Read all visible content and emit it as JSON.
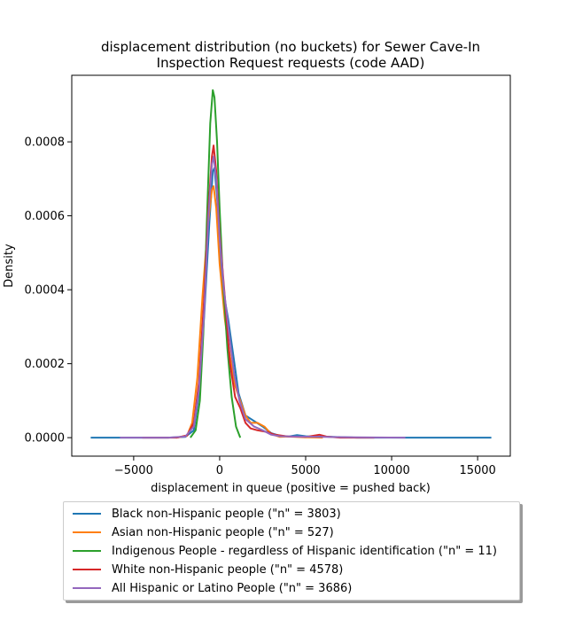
{
  "chart_data": {
    "type": "line",
    "title": [
      "displacement distribution (no buckets)  for Sewer Cave-In",
      "Inspection Request requests (code AAD)"
    ],
    "xlabel": "displacement in queue (positive = pushed back)",
    "ylabel": "Density",
    "xlim": [
      -8600,
      16900
    ],
    "ylim": [
      -5e-05,
      0.00098
    ],
    "xticks": [
      -5000,
      0,
      5000,
      10000,
      15000
    ],
    "xtick_labels": [
      "−5000",
      "0",
      "5000",
      "10000",
      "15000"
    ],
    "yticks": [
      0,
      0.0002,
      0.0004,
      0.0006,
      0.0008
    ],
    "ytick_labels": [
      "0.0000",
      "0.0002",
      "0.0004",
      "0.0006",
      "0.0008"
    ],
    "legend_placement": "below",
    "series": [
      {
        "name": "Black non-Hispanic people (\"n\" = 3803)",
        "color": "#1f77b4",
        "points": [
          [
            -7500,
            0
          ],
          [
            -3000,
            0
          ],
          [
            -2000,
            2e-06
          ],
          [
            -1500,
            2e-05
          ],
          [
            -1200,
            0.00012
          ],
          [
            -900,
            0.00033
          ],
          [
            -600,
            0.00058
          ],
          [
            -400,
            0.00072
          ],
          [
            -300,
            0.00073
          ],
          [
            -150,
            0.00065
          ],
          [
            0,
            0.00052
          ],
          [
            200,
            0.0004
          ],
          [
            500,
            0.00032
          ],
          [
            800,
            0.00022
          ],
          [
            1100,
            0.00012
          ],
          [
            1500,
            6e-05
          ],
          [
            2000,
            4.5e-05
          ],
          [
            2500,
            3e-05
          ],
          [
            3000,
            1.2e-05
          ],
          [
            3500,
            5e-06
          ],
          [
            4000,
            3e-06
          ],
          [
            4500,
            7e-06
          ],
          [
            5000,
            4e-06
          ],
          [
            5500,
            2e-06
          ],
          [
            6000,
            3e-06
          ],
          [
            8000,
            0
          ],
          [
            15800,
            0
          ]
        ]
      },
      {
        "name": "Asian non-Hispanic people (\"n\" = 527)",
        "color": "#ff7f0e",
        "points": [
          [
            -2500,
            0
          ],
          [
            -1900,
            5e-06
          ],
          [
            -1600,
            4e-05
          ],
          [
            -1300,
            0.00016
          ],
          [
            -1000,
            0.00038
          ],
          [
            -700,
            0.00057
          ],
          [
            -450,
            0.00067
          ],
          [
            -350,
            0.00068
          ],
          [
            -200,
            0.00062
          ],
          [
            0,
            0.00047
          ],
          [
            300,
            0.00032
          ],
          [
            600,
            0.00022
          ],
          [
            900,
            0.00014
          ],
          [
            1200,
            0.0001
          ],
          [
            1500,
            6e-05
          ],
          [
            1800,
            4e-05
          ],
          [
            2200,
            4e-05
          ],
          [
            2600,
            3e-05
          ],
          [
            3000,
            1e-05
          ],
          [
            3500,
            2e-06
          ],
          [
            4000,
            3e-06
          ],
          [
            5000,
            1e-06
          ],
          [
            6000,
            0
          ]
        ]
      },
      {
        "name": "Indigenous People - regardless of Hispanic identification (\"n\" = 11)",
        "color": "#2ca02c",
        "points": [
          [
            -1700,
            0
          ],
          [
            -1400,
            2e-05
          ],
          [
            -1150,
            0.0001
          ],
          [
            -950,
            0.00028
          ],
          [
            -750,
            0.00058
          ],
          [
            -550,
            0.00085
          ],
          [
            -400,
            0.00094
          ],
          [
            -300,
            0.00092
          ],
          [
            -150,
            0.0008
          ],
          [
            0,
            0.00062
          ],
          [
            200,
            0.00042
          ],
          [
            450,
            0.00024
          ],
          [
            700,
            0.00011
          ],
          [
            950,
            3e-05
          ],
          [
            1200,
            0
          ]
        ]
      },
      {
        "name": "White non-Hispanic people (\"n\" = 4578)",
        "color": "#d62728",
        "points": [
          [
            -4500,
            0
          ],
          [
            -2500,
            0
          ],
          [
            -1900,
            6e-06
          ],
          [
            -1500,
            4e-05
          ],
          [
            -1200,
            0.00015
          ],
          [
            -900,
            0.00038
          ],
          [
            -650,
            0.00062
          ],
          [
            -450,
            0.00076
          ],
          [
            -350,
            0.00079
          ],
          [
            -200,
            0.00072
          ],
          [
            0,
            0.00055
          ],
          [
            300,
            0.00038
          ],
          [
            600,
            0.0002
          ],
          [
            900,
            0.00011
          ],
          [
            1200,
            8e-05
          ],
          [
            1500,
            4e-05
          ],
          [
            1800,
            2.5e-05
          ],
          [
            2200,
            2e-05
          ],
          [
            2800,
            1.5e-05
          ],
          [
            3200,
            8e-06
          ],
          [
            4000,
            3e-06
          ],
          [
            5000,
            2e-06
          ],
          [
            5800,
            8e-06
          ],
          [
            6200,
            3e-06
          ],
          [
            7000,
            0
          ],
          [
            9000,
            0
          ]
        ]
      },
      {
        "name": "All Hispanic or Latino People (\"n\" = 3686)",
        "color": "#9467bd",
        "points": [
          [
            -5800,
            0
          ],
          [
            -3000,
            0
          ],
          [
            -2000,
            3e-06
          ],
          [
            -1500,
            3e-05
          ],
          [
            -1200,
            0.00013
          ],
          [
            -900,
            0.00034
          ],
          [
            -650,
            0.0006
          ],
          [
            -450,
            0.00074
          ],
          [
            -350,
            0.00076
          ],
          [
            -200,
            0.0007
          ],
          [
            0,
            0.00054
          ],
          [
            250,
            0.0004
          ],
          [
            550,
            0.00028
          ],
          [
            850,
            0.00017
          ],
          [
            1150,
            0.0001
          ],
          [
            1500,
            5e-05
          ],
          [
            2000,
            3e-05
          ],
          [
            2500,
            2e-05
          ],
          [
            3000,
            8e-06
          ],
          [
            3500,
            4e-06
          ],
          [
            4500,
            3e-06
          ],
          [
            6000,
            2e-06
          ],
          [
            8000,
            1e-06
          ],
          [
            10800,
            0
          ]
        ]
      }
    ]
  }
}
